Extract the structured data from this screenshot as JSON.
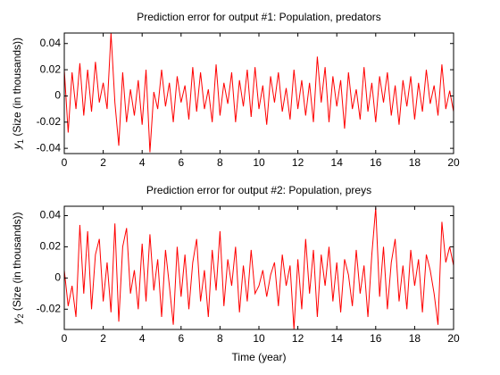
{
  "chart_data": [
    {
      "type": "line",
      "title": "Prediction error for output #1: Population, predators",
      "ylabel_var": "y",
      "ylabel_sub": "1",
      "ylabel_text": "(Size (in thousands))",
      "xlim": [
        0,
        20
      ],
      "xticks": [
        0,
        2,
        4,
        6,
        8,
        10,
        12,
        14,
        16,
        18,
        20
      ],
      "ylim": [
        -0.044,
        0.048
      ],
      "yticks": [
        -0.04,
        -0.02,
        0,
        0.02,
        0.04
      ],
      "x": [
        0,
        0.2,
        0.4,
        0.6,
        0.8,
        1,
        1.2,
        1.4,
        1.6,
        1.8,
        2,
        2.2,
        2.4,
        2.6,
        2.8,
        3,
        3.2,
        3.4,
        3.6,
        3.8,
        4,
        4.2,
        4.4,
        4.6,
        4.8,
        5,
        5.2,
        5.4,
        5.6,
        5.8,
        6,
        6.2,
        6.4,
        6.6,
        6.8,
        7,
        7.2,
        7.4,
        7.6,
        7.8,
        8,
        8.2,
        8.4,
        8.6,
        8.8,
        9,
        9.2,
        9.4,
        9.6,
        9.8,
        10,
        10.2,
        10.4,
        10.6,
        10.8,
        11,
        11.2,
        11.4,
        11.6,
        11.8,
        12,
        12.2,
        12.4,
        12.6,
        12.8,
        13,
        13.2,
        13.4,
        13.6,
        13.8,
        14,
        14.2,
        14.4,
        14.6,
        14.8,
        15,
        15.2,
        15.4,
        15.6,
        15.8,
        16,
        16.2,
        16.4,
        16.6,
        16.8,
        17,
        17.2,
        17.4,
        17.6,
        17.8,
        18,
        18.2,
        18.4,
        18.6,
        18.8,
        19,
        19.2,
        19.4,
        19.6,
        19.8,
        20
      ],
      "series": [
        {
          "color": "#ff0000",
          "values": [
            0.02,
            -0.028,
            0.018,
            -0.01,
            0.025,
            -0.015,
            0.02,
            -0.012,
            0.026,
            -0.005,
            0.01,
            -0.01,
            0.048,
            -0.005,
            -0.038,
            0.018,
            -0.02,
            0.005,
            -0.015,
            0.012,
            -0.022,
            0.02,
            -0.043,
            0.003,
            -0.01,
            0.02,
            -0.008,
            0.01,
            -0.02,
            0.015,
            -0.005,
            0.008,
            -0.018,
            0.022,
            -0.012,
            0.018,
            -0.01,
            0.005,
            -0.02,
            0.024,
            -0.015,
            0.01,
            -0.006,
            0.018,
            -0.02,
            0.012,
            -0.008,
            0.02,
            -0.016,
            0.022,
            -0.01,
            0.008,
            -0.022,
            0.015,
            -0.005,
            0.018,
            -0.012,
            0.006,
            -0.018,
            0.02,
            -0.01,
            0.012,
            -0.015,
            0.01,
            -0.02,
            0.03,
            -0.005,
            0.022,
            -0.02,
            0.015,
            -0.008,
            0.012,
            -0.025,
            0.018,
            -0.01,
            0.005,
            -0.018,
            0.022,
            -0.012,
            0.01,
            -0.02,
            0.015,
            -0.005,
            0.018,
            -0.015,
            0.008,
            -0.022,
            0.012,
            -0.008,
            0.015,
            -0.018,
            0.01,
            -0.012,
            0.02,
            -0.006,
            0.008,
            -0.015,
            0.024,
            -0.01,
            0.004,
            -0.012
          ]
        }
      ]
    },
    {
      "type": "line",
      "title": "Prediction error for output #2: Population, preys",
      "ylabel_var": "y",
      "ylabel_sub": "2",
      "ylabel_text": "(Size (in thousands))",
      "xlabel": "Time (year)",
      "xlim": [
        0,
        20
      ],
      "xticks": [
        0,
        2,
        4,
        6,
        8,
        10,
        12,
        14,
        16,
        18,
        20
      ],
      "ylim": [
        -0.033,
        0.046
      ],
      "yticks": [
        -0.02,
        0,
        0.02,
        0.04
      ],
      "x": [
        0,
        0.2,
        0.4,
        0.6,
        0.8,
        1,
        1.2,
        1.4,
        1.6,
        1.8,
        2,
        2.2,
        2.4,
        2.6,
        2.8,
        3,
        3.2,
        3.4,
        3.6,
        3.8,
        4,
        4.2,
        4.4,
        4.6,
        4.8,
        5,
        5.2,
        5.4,
        5.6,
        5.8,
        6,
        6.2,
        6.4,
        6.6,
        6.8,
        7,
        7.2,
        7.4,
        7.6,
        7.8,
        8,
        8.2,
        8.4,
        8.6,
        8.8,
        9,
        9.2,
        9.4,
        9.6,
        9.8,
        10,
        10.2,
        10.4,
        10.6,
        10.8,
        11,
        11.2,
        11.4,
        11.6,
        11.8,
        12,
        12.2,
        12.4,
        12.6,
        12.8,
        13,
        13.2,
        13.4,
        13.6,
        13.8,
        14,
        14.2,
        14.4,
        14.6,
        14.8,
        15,
        15.2,
        15.4,
        15.6,
        15.8,
        16,
        16.2,
        16.4,
        16.6,
        16.8,
        17,
        17.2,
        17.4,
        17.6,
        17.8,
        18,
        18.2,
        18.4,
        18.6,
        18.8,
        19,
        19.2,
        19.4,
        19.6,
        19.8,
        20
      ],
      "series": [
        {
          "color": "#ff0000",
          "values": [
            0.005,
            -0.018,
            -0.005,
            -0.025,
            0.034,
            -0.01,
            0.03,
            -0.02,
            0.015,
            0.025,
            -0.015,
            0.01,
            -0.022,
            0.035,
            -0.028,
            0.02,
            0.032,
            -0.01,
            0.005,
            -0.02,
            0.022,
            -0.015,
            0.028,
            -0.008,
            0.012,
            -0.025,
            0.018,
            -0.005,
            -0.03,
            0.02,
            -0.012,
            0.015,
            -0.02,
            0.01,
            0.025,
            -0.015,
            0.005,
            -0.025,
            0.018,
            -0.008,
            0.03,
            -0.018,
            0.012,
            -0.005,
            0.02,
            -0.022,
            0.008,
            -0.015,
            0.018,
            -0.01,
            -0.005,
            0.005,
            -0.012,
            0.002,
            0.01,
            -0.018,
            0.015,
            -0.005,
            0.008,
            -0.033,
            0.012,
            -0.02,
            0.025,
            -0.01,
            0.018,
            -0.025,
            0.015,
            -0.005,
            0.02,
            -0.015,
            0.01,
            -0.022,
            0.012,
            0.002,
            -0.018,
            0.018,
            -0.01,
            0.008,
            -0.025,
            0.015,
            0.045,
            -0.012,
            0.02,
            -0.02,
            0.01,
            0.025,
            -0.015,
            0.008,
            -0.02,
            0.018,
            -0.005,
            0.012,
            -0.022,
            0.015,
            0.005,
            -0.01,
            -0.03,
            0.036,
            0.01,
            0.02,
            0.008
          ]
        }
      ]
    }
  ]
}
